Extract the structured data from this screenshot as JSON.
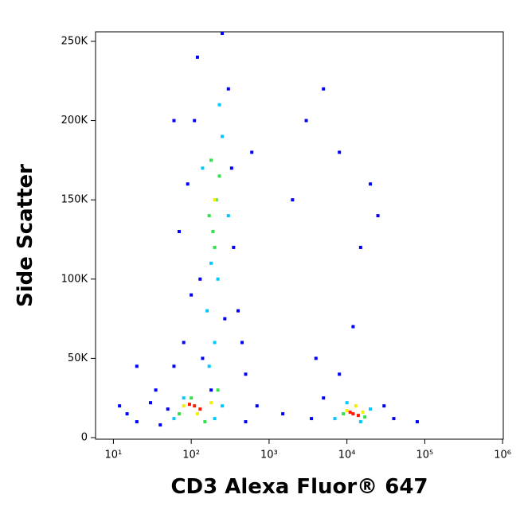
{
  "chart_data": {
    "type": "scatter",
    "x_label": "CD3 Alexa Fluor® 647",
    "y_label": "Side Scatter",
    "xscale": "log",
    "xlim": [
      5.9,
      1020000
    ],
    "ylim": [
      -1000,
      256000
    ],
    "xticks": [
      {
        "value": 10,
        "label": "10¹"
      },
      {
        "value": 100,
        "label": "10²"
      },
      {
        "value": 1000,
        "label": "10³"
      },
      {
        "value": 10000,
        "label": "10⁴"
      },
      {
        "value": 100000,
        "label": "10⁵"
      },
      {
        "value": 1000000,
        "label": "10⁶"
      }
    ],
    "yticks": [
      0,
      {
        "value": 50000,
        "label": "50K"
      },
      {
        "value": 100000,
        "label": "100K"
      },
      {
        "value": 150000,
        "label": "150K"
      },
      {
        "value": 200000,
        "label": "200K"
      },
      {
        "value": 250000,
        "label": "250K"
      }
    ],
    "series": [
      {
        "color": "#0000ff",
        "x": [
          15,
          20,
          30,
          40,
          35,
          60,
          80,
          70,
          90,
          60,
          100,
          120,
          400,
          500,
          600,
          300,
          250,
          350,
          450,
          20,
          12,
          700,
          2000,
          3000,
          5000,
          8000,
          15000,
          20000,
          25000,
          4000,
          8000,
          12000,
          3500,
          30000,
          40000,
          5000,
          1500,
          80000,
          180,
          140,
          110,
          330,
          130,
          270,
          50,
          500
        ],
        "values": [
          15000,
          10000,
          22000,
          8000,
          30000,
          45000,
          60000,
          130000,
          160000,
          200000,
          90000,
          240000,
          80000,
          40000,
          180000,
          220000,
          255000,
          120000,
          60000,
          45000,
          20000,
          20000,
          150000,
          200000,
          220000,
          180000,
          120000,
          160000,
          140000,
          50000,
          40000,
          70000,
          12000,
          20000,
          12000,
          25000,
          15000,
          10000,
          30000,
          50000,
          200000,
          170000,
          100000,
          75000,
          18000,
          10000
        ]
      },
      {
        "color": "#00c8ff",
        "x": [
          200,
          160,
          220,
          180,
          250,
          230,
          170,
          300,
          60,
          200,
          250,
          80,
          7000,
          20000,
          10000,
          15000,
          140
        ],
        "values": [
          60000,
          80000,
          100000,
          110000,
          190000,
          210000,
          45000,
          140000,
          12000,
          12000,
          20000,
          25000,
          12000,
          18000,
          22000,
          10000,
          170000
        ]
      },
      {
        "color": "#33e04a",
        "x": [
          190,
          210,
          170,
          230,
          200,
          180,
          100,
          150,
          70,
          9000,
          17000,
          220
        ],
        "values": [
          130000,
          150000,
          140000,
          165000,
          120000,
          175000,
          25000,
          10000,
          15000,
          15000,
          13000,
          30000
        ]
      },
      {
        "color": "#f0f000",
        "x": [
          200,
          120,
          180,
          80,
          10000,
          16000,
          13000
        ],
        "values": [
          150000,
          15000,
          22000,
          20000,
          17000,
          16000,
          20000
        ]
      },
      {
        "color": "#ff1a00",
        "x": [
          110,
          130,
          95,
          12000,
          14000,
          11000
        ],
        "values": [
          20000,
          18000,
          21000,
          15000,
          14000,
          16000
        ]
      }
    ]
  }
}
